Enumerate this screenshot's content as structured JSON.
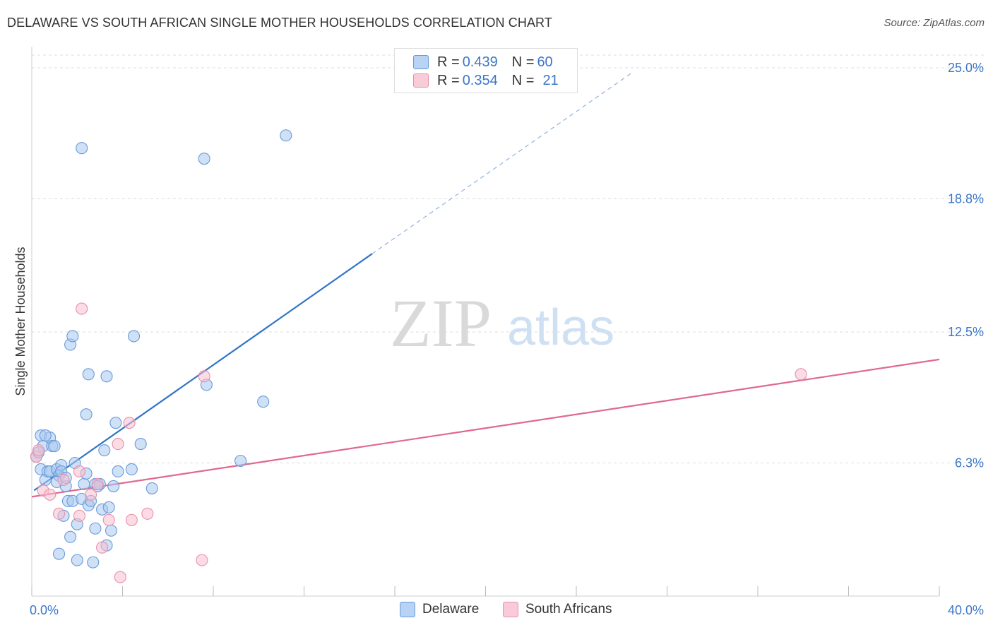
{
  "chart_data": {
    "type": "scatter",
    "title": "DELAWARE VS SOUTH AFRICAN SINGLE MOTHER HOUSEHOLDS CORRELATION CHART",
    "source": "Source: ZipAtlas.com",
    "xlabel": "",
    "ylabel": "Single Mother Households",
    "xlim": [
      0,
      40
    ],
    "ylim": [
      0,
      25
    ],
    "x_tick_labels": {
      "min": "0.0%",
      "max": "40.0%"
    },
    "y_ticks": [
      {
        "value": 6.3,
        "label": "6.3%"
      },
      {
        "value": 12.5,
        "label": "12.5%"
      },
      {
        "value": 18.8,
        "label": "18.8%"
      },
      {
        "value": 25.0,
        "label": "25.0%"
      }
    ],
    "grid": true,
    "watermark": {
      "zip": "ZIP",
      "atlas": "atlas"
    },
    "legend": {
      "rows": [
        {
          "r_label": "R =",
          "r_value": "0.439",
          "n_label": "N =",
          "n_value": "60"
        },
        {
          "r_label": "R =",
          "r_value": "0.354",
          "n_label": "N =",
          "n_value": "21"
        }
      ]
    },
    "series": [
      {
        "name": "Delaware",
        "color": "#a8c8f0",
        "edge": "#6a9ad8",
        "line_color": "#2f74c8",
        "trend": {
          "x0": 0.1,
          "y0": 5.0,
          "x1": 15.0,
          "y1": 16.2,
          "dash_x1": 26.5,
          "dash_y1": 24.8
        },
        "points": [
          [
            0.2,
            6.6
          ],
          [
            0.4,
            7.6
          ],
          [
            0.5,
            7.1
          ],
          [
            0.4,
            6.0
          ],
          [
            0.3,
            6.8
          ],
          [
            0.6,
            5.5
          ],
          [
            0.7,
            5.9
          ],
          [
            0.8,
            7.5
          ],
          [
            0.9,
            7.1
          ],
          [
            0.8,
            5.9
          ],
          [
            1.0,
            7.1
          ],
          [
            1.1,
            6.0
          ],
          [
            1.2,
            5.7
          ],
          [
            1.3,
            6.2
          ],
          [
            1.1,
            5.4
          ],
          [
            1.3,
            5.9
          ],
          [
            1.5,
            5.2
          ],
          [
            1.6,
            4.5
          ],
          [
            1.4,
            3.8
          ],
          [
            1.7,
            2.8
          ],
          [
            1.8,
            4.5
          ],
          [
            1.9,
            6.3
          ],
          [
            2.0,
            3.4
          ],
          [
            1.7,
            11.9
          ],
          [
            1.8,
            12.3
          ],
          [
            2.2,
            4.6
          ],
          [
            2.3,
            5.3
          ],
          [
            2.5,
            4.3
          ],
          [
            2.6,
            4.5
          ],
          [
            2.4,
            5.8
          ],
          [
            2.4,
            8.6
          ],
          [
            2.5,
            10.5
          ],
          [
            2.7,
            1.6
          ],
          [
            2.8,
            3.2
          ],
          [
            2.8,
            5.3
          ],
          [
            3.0,
            5.3
          ],
          [
            3.1,
            4.1
          ],
          [
            3.2,
            6.9
          ],
          [
            3.3,
            2.4
          ],
          [
            3.3,
            10.4
          ],
          [
            3.4,
            4.2
          ],
          [
            3.5,
            3.1
          ],
          [
            3.7,
            8.2
          ],
          [
            3.8,
            5.9
          ],
          [
            4.4,
            6.0
          ],
          [
            4.5,
            12.3
          ],
          [
            4.8,
            7.2
          ],
          [
            5.3,
            5.1
          ],
          [
            7.7,
            10.0
          ],
          [
            9.2,
            6.4
          ],
          [
            10.2,
            9.2
          ],
          [
            2.2,
            21.2
          ],
          [
            7.6,
            20.7
          ],
          [
            11.2,
            21.8
          ],
          [
            1.2,
            2.0
          ],
          [
            2.0,
            1.7
          ],
          [
            0.6,
            7.6
          ],
          [
            1.5,
            5.6
          ],
          [
            2.9,
            5.2
          ],
          [
            3.6,
            5.2
          ]
        ]
      },
      {
        "name": "South Africans",
        "color": "#f8c0d0",
        "edge": "#e890aa",
        "line_color": "#e06890",
        "trend": {
          "x0": 0.0,
          "y0": 4.7,
          "x1": 40.0,
          "y1": 11.2
        },
        "points": [
          [
            0.2,
            6.6
          ],
          [
            0.3,
            6.9
          ],
          [
            0.5,
            5.0
          ],
          [
            0.8,
            4.8
          ],
          [
            1.2,
            3.9
          ],
          [
            1.4,
            5.5
          ],
          [
            2.1,
            5.9
          ],
          [
            2.1,
            3.8
          ],
          [
            2.2,
            13.6
          ],
          [
            2.6,
            4.8
          ],
          [
            2.9,
            5.3
          ],
          [
            3.1,
            2.3
          ],
          [
            3.4,
            3.6
          ],
          [
            3.9,
            0.9
          ],
          [
            4.4,
            3.6
          ],
          [
            5.1,
            3.9
          ],
          [
            7.6,
            10.4
          ],
          [
            4.3,
            8.2
          ],
          [
            3.8,
            7.2
          ],
          [
            7.5,
            1.7
          ],
          [
            33.9,
            10.5
          ]
        ]
      }
    ]
  }
}
